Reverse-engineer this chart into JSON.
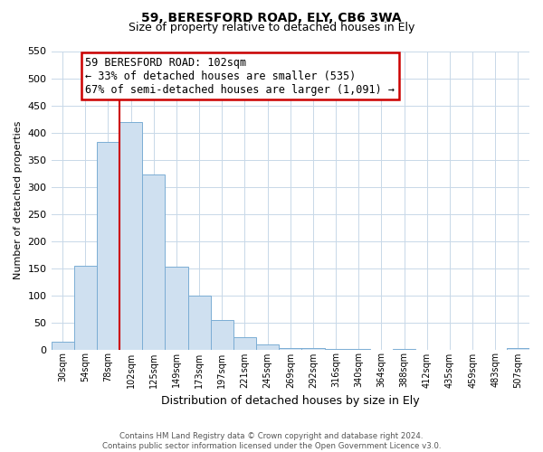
{
  "title": "59, BERESFORD ROAD, ELY, CB6 3WA",
  "subtitle": "Size of property relative to detached houses in Ely",
  "xlabel": "Distribution of detached houses by size in Ely",
  "ylabel": "Number of detached properties",
  "bin_labels": [
    "30sqm",
    "54sqm",
    "78sqm",
    "102sqm",
    "125sqm",
    "149sqm",
    "173sqm",
    "197sqm",
    "221sqm",
    "245sqm",
    "269sqm",
    "292sqm",
    "316sqm",
    "340sqm",
    "364sqm",
    "388sqm",
    "412sqm",
    "435sqm",
    "459sqm",
    "483sqm",
    "507sqm"
  ],
  "bar_heights": [
    15,
    155,
    383,
    420,
    323,
    152,
    100,
    54,
    22,
    10,
    3,
    2,
    1,
    1,
    0,
    1,
    0,
    0,
    0,
    0,
    2
  ],
  "bar_color": "#cfe0f0",
  "bar_edge_color": "#7badd4",
  "vline_x_index": 3,
  "vline_color": "#cc0000",
  "annotation_line1": "59 BERESFORD ROAD: 102sqm",
  "annotation_line2": "← 33% of detached houses are smaller (535)",
  "annotation_line3": "67% of semi-detached houses are larger (1,091) →",
  "annotation_box_color": "#ffffff",
  "annotation_box_edge": "#cc0000",
  "ylim": [
    0,
    550
  ],
  "yticks": [
    0,
    50,
    100,
    150,
    200,
    250,
    300,
    350,
    400,
    450,
    500,
    550
  ],
  "footer_line1": "Contains HM Land Registry data © Crown copyright and database right 2024.",
  "footer_line2": "Contains public sector information licensed under the Open Government Licence v3.0.",
  "background_color": "#ffffff",
  "grid_color": "#c8d8e8",
  "title_fontsize": 10,
  "subtitle_fontsize": 9
}
